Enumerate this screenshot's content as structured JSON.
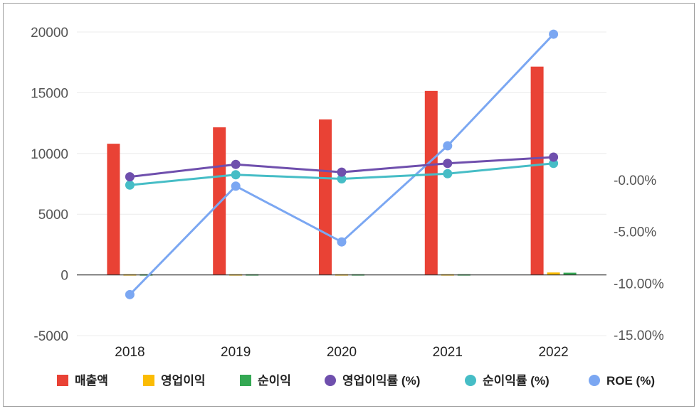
{
  "chart_data": {
    "type": "bar",
    "categories": [
      "2018",
      "2019",
      "2020",
      "2021",
      "2022"
    ],
    "left_axis": {
      "ticks": [
        20000,
        15000,
        10000,
        5000,
        0,
        -5000
      ],
      "ylim": [
        -5000,
        20000
      ]
    },
    "right_axis": {
      "ticks": [
        "-0.00%",
        "-5.00%",
        "-10.00%",
        "-15.00%"
      ],
      "tick_values": [
        0,
        -5,
        -10,
        -15
      ]
    },
    "grid": true,
    "legend_position": "bottom",
    "series": [
      {
        "name": "매출액",
        "kind": "bar",
        "axis": "left",
        "color": "#e94235",
        "values": [
          10800,
          12150,
          12800,
          15150,
          17150
        ]
      },
      {
        "name": "영업이익",
        "kind": "bar",
        "axis": "left",
        "color": "#fbbc04",
        "values": [
          -50,
          100,
          -20,
          80,
          200
        ]
      },
      {
        "name": "순이익",
        "kind": "bar",
        "axis": "left",
        "color": "#34a853",
        "values": [
          -80,
          30,
          -10,
          20,
          180
        ]
      },
      {
        "name": "영업이익률 (%)",
        "kind": "line",
        "axis": "right",
        "color": "#6f4fad",
        "values": [
          0.3,
          1.5,
          0.75,
          1.6,
          2.2
        ]
      },
      {
        "name": "순이익률 (%)",
        "kind": "line",
        "axis": "right",
        "color": "#46bdc6",
        "values": [
          -0.5,
          0.5,
          0.1,
          0.6,
          1.6
        ]
      },
      {
        "name": "ROE (%)",
        "kind": "line",
        "axis": "right",
        "color": "#7ba7f2",
        "values": [
          -11.1,
          -0.6,
          -6.0,
          3.3,
          14.1
        ]
      }
    ]
  }
}
